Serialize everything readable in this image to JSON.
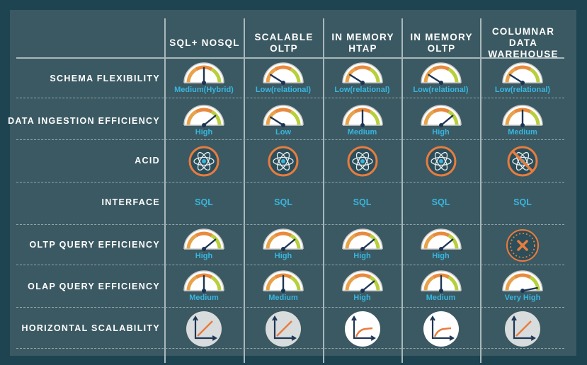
{
  "columns": [
    {
      "label": "SQL+ NOSQL"
    },
    {
      "label": "SCALABLE\nOLTP"
    },
    {
      "label": "IN MEMORY\nHTAP"
    },
    {
      "label": "IN MEMORY\nOLTP"
    },
    {
      "label": "COLUMNAR DATA\nWAREHOUSE"
    }
  ],
  "rows": [
    {
      "label": "SCHEMA FLEXIBILITY",
      "kind": "gauge",
      "cells": [
        {
          "value": "Medium(Hybrid)",
          "level": 0.5
        },
        {
          "value": "Low(relational)",
          "level": 0.18
        },
        {
          "value": "Low(relational)",
          "level": 0.18
        },
        {
          "value": "Low(relational)",
          "level": 0.18
        },
        {
          "value": "Low(relational)",
          "level": 0.18
        }
      ]
    },
    {
      "label": "DATA INGESTION EFFICIENCY",
      "kind": "gauge",
      "cells": [
        {
          "value": "High",
          "level": 0.78
        },
        {
          "value": "Low",
          "level": 0.18
        },
        {
          "value": "Medium",
          "level": 0.5
        },
        {
          "value": "High",
          "level": 0.78
        },
        {
          "value": "Medium",
          "level": 0.5
        }
      ]
    },
    {
      "label": "ACID",
      "kind": "acid",
      "cells": [
        {
          "supported": true
        },
        {
          "supported": true
        },
        {
          "supported": true
        },
        {
          "supported": true
        },
        {
          "supported": false
        }
      ]
    },
    {
      "label": "INTERFACE",
      "kind": "text",
      "cells": [
        {
          "value": "SQL"
        },
        {
          "value": "SQL"
        },
        {
          "value": "SQL"
        },
        {
          "value": "SQL"
        },
        {
          "value": "SQL"
        }
      ]
    },
    {
      "label": "OLTP QUERY EFFICIENCY",
      "kind": "gauge",
      "cells": [
        {
          "value": "High",
          "level": 0.78
        },
        {
          "value": "High",
          "level": 0.78
        },
        {
          "value": "High",
          "level": 0.78
        },
        {
          "value": "High",
          "level": 0.78
        },
        {
          "value": "",
          "na": true
        }
      ]
    },
    {
      "label": "OLAP QUERY EFFICIENCY",
      "kind": "gauge",
      "cells": [
        {
          "value": "Medium",
          "level": 0.5
        },
        {
          "value": "Medium",
          "level": 0.5
        },
        {
          "value": "High",
          "level": 0.78
        },
        {
          "value": "Medium",
          "level": 0.5
        },
        {
          "value": "Very High",
          "level": 0.94
        }
      ]
    },
    {
      "label": "HORIZONTAL SCALABILITY",
      "kind": "scale",
      "cells": [
        {
          "curve": "linear"
        },
        {
          "curve": "linear"
        },
        {
          "curve": "flattening"
        },
        {
          "curve": "flattening"
        },
        {
          "curve": "linear"
        }
      ]
    }
  ],
  "colors": {
    "accent": "#38b6e0",
    "orange": "#e87c3e",
    "navy": "#1d3656",
    "arc": "#c9c9c9"
  }
}
